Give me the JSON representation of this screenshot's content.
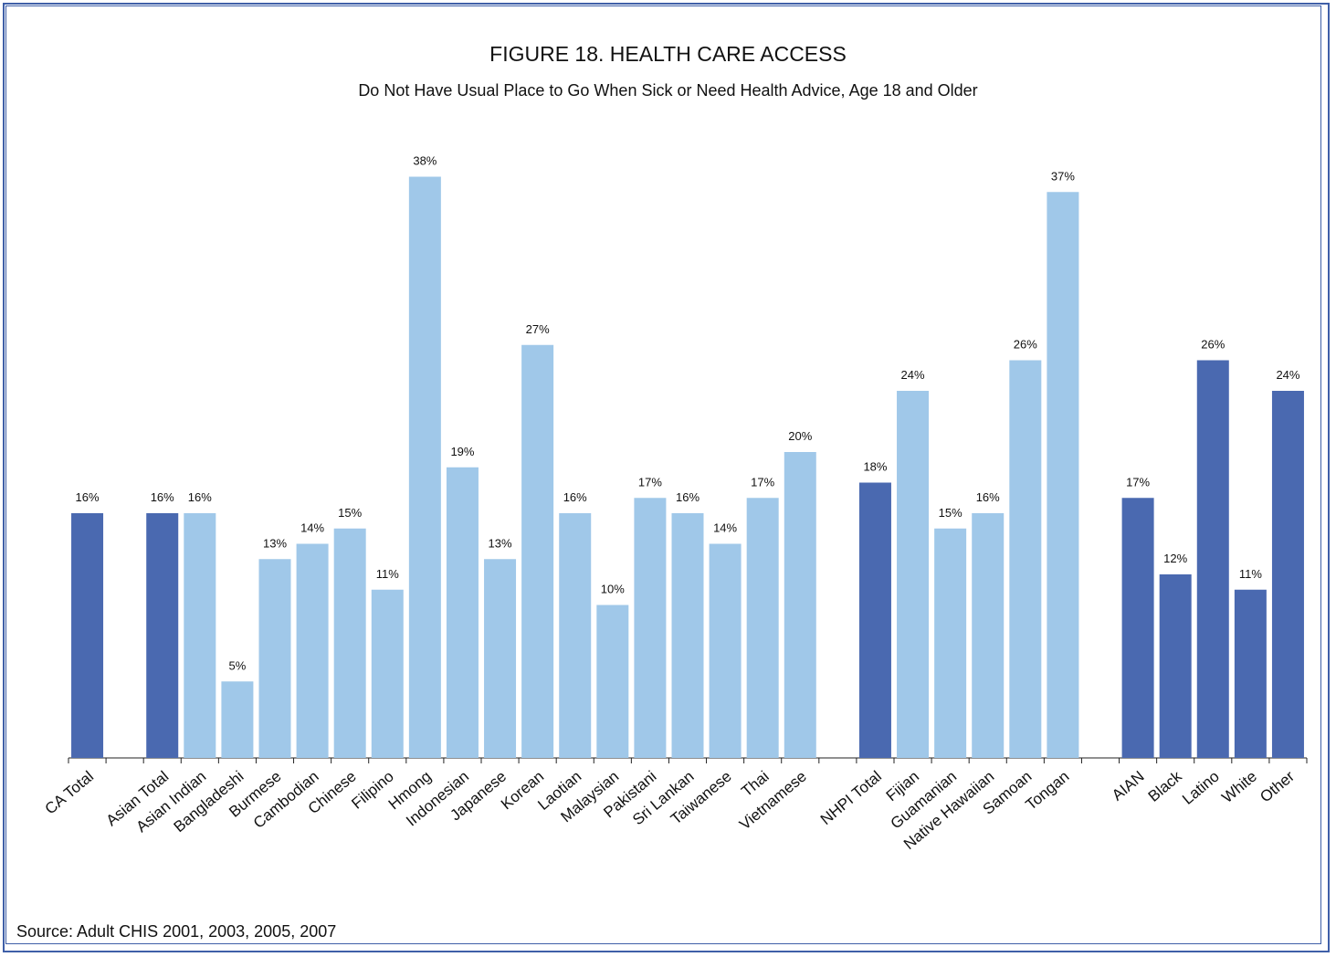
{
  "title": "FIGURE 18. HEALTH CARE ACCESS",
  "subtitle": "Do Not Have Usual Place to Go When Sick or Need Health Advice, Age 18 and Older",
  "source": "Source: Adult CHIS 2001, 2003, 2005, 2007",
  "colors": {
    "total_bar": "#4a69b0",
    "group_bar": "#a0c8e9",
    "border": "#3f5fa8",
    "axis": "#222222"
  },
  "chart_data": {
    "type": "bar",
    "title": "FIGURE 18. HEALTH CARE ACCESS",
    "subtitle": "Do Not Have Usual Place to Go When Sick or Need Health Advice, Age 18 and Older",
    "xlabel": "",
    "ylabel": "",
    "ylim": [
      0,
      38
    ],
    "grid": false,
    "value_format": "percent",
    "categories": [
      "CA Total",
      "",
      "Asian Total",
      "Asian Indian",
      "Bangladeshi",
      "Burmese",
      "Cambodian",
      "Chinese",
      "Filipino",
      "Hmong",
      "Indonesian",
      "Japanese",
      "Korean",
      "Laotian",
      "Malaysian",
      "Pakistani",
      "Sri Lankan",
      "Taiwanese",
      "Thai",
      "Vietnamese",
      "",
      "NHPI Total",
      "Fijian",
      "Guamanian",
      "Native Hawaiian",
      "Samoan",
      "Tongan",
      "",
      "AIAN",
      "Black",
      "Latino",
      "White",
      "Other"
    ],
    "values": [
      16,
      null,
      16,
      16,
      5,
      13,
      14,
      15,
      11,
      38,
      19,
      13,
      27,
      16,
      10,
      17,
      16,
      14,
      17,
      20,
      null,
      18,
      24,
      15,
      16,
      26,
      37,
      null,
      17,
      12,
      26,
      11,
      24
    ],
    "labels": [
      "16%",
      "",
      "16%",
      "16%",
      "5%",
      "13%",
      "14%",
      "15%",
      "11%",
      "38%",
      "19%",
      "13%",
      "27%",
      "16%",
      "10%",
      "17%",
      "16%",
      "14%",
      "17%",
      "20%",
      "",
      "18%",
      "24%",
      "15%",
      "16%",
      "26%",
      "37%",
      "",
      "17%",
      "12%",
      "26%",
      "11%",
      "24%"
    ],
    "bar_type": [
      "total",
      "gap",
      "total",
      "group",
      "group",
      "group",
      "group",
      "group",
      "group",
      "group",
      "group",
      "group",
      "group",
      "group",
      "group",
      "group",
      "group",
      "group",
      "group",
      "group",
      "gap",
      "total",
      "group",
      "group",
      "group",
      "group",
      "group",
      "gap",
      "total",
      "total",
      "total",
      "total",
      "total"
    ]
  }
}
